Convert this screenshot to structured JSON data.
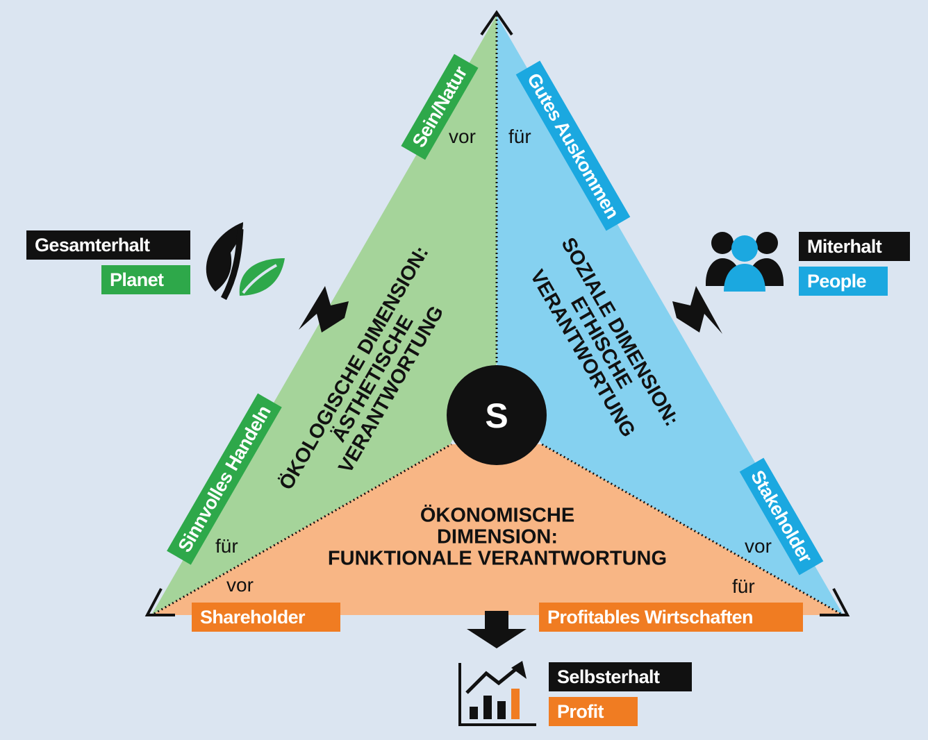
{
  "edges": {
    "left_top": "Sein/Natur",
    "right_top": "Gutes Auskommen",
    "left_bottom": "Sinnvolles Handeln",
    "right_bottom": "Stakeholder",
    "bottom_left": "Shareholder",
    "bottom_right": "Profitables Wirtschaften"
  },
  "connectors": {
    "top_left": "vor",
    "top_right": "für",
    "left_bottom_fuer": "für",
    "left_bottom_vor": "vor",
    "right_bottom_vor": "vor",
    "right_bottom_fuer": "für"
  },
  "dimensions": {
    "ecological": [
      "ÖKOLOGISCHE DIMENSION:",
      "ÄSTHETISCHE",
      "VERANTWORTUNG"
    ],
    "social": [
      "SOZIALE DIMENSION:",
      "ETHISCHE",
      "VERANTWORTUNG"
    ],
    "economic": [
      "ÖKONOMISCHE",
      "DIMENSION:",
      "FUNKTIONALE VERANTWORTUNG"
    ]
  },
  "center_symbol": "S",
  "corners": {
    "planet": {
      "top": "Gesamterhalt",
      "bottom": "Planet",
      "icon": "leaf-icon"
    },
    "people": {
      "top": "Miterhalt",
      "bottom": "People",
      "icon": "people-group-icon"
    },
    "profit": {
      "top": "Selbsterhalt",
      "bottom": "Profit",
      "icon": "growth-chart-icon"
    }
  },
  "colors": {
    "background": "#dbe5f1",
    "green_area": "#a5d49a",
    "blue_area": "#85d1f0",
    "orange_area": "#f8b685",
    "green": "#2ea84a",
    "blue": "#1ba8e0",
    "orange": "#f07c22",
    "black": "#111111"
  }
}
